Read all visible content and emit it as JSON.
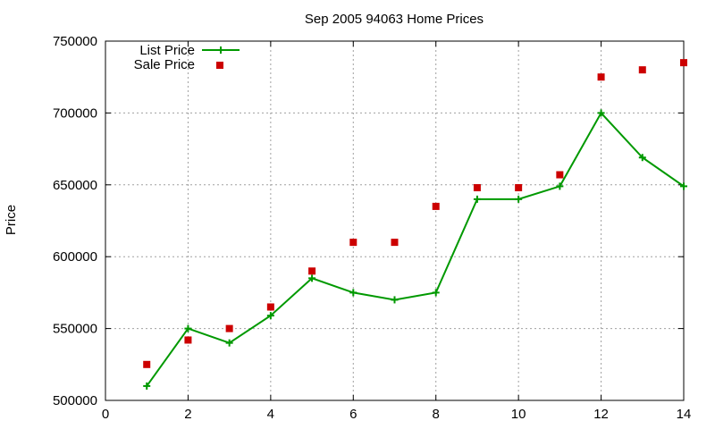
{
  "chart_data": {
    "type": "line",
    "title": "Sep 2005 94063 Home Prices",
    "xlabel": "",
    "ylabel": "Price",
    "xlim": [
      0,
      14
    ],
    "ylim": [
      500000,
      750000
    ],
    "x_ticks": [
      0,
      2,
      4,
      6,
      8,
      10,
      12,
      14
    ],
    "y_ticks": [
      500000,
      550000,
      600000,
      650000,
      700000,
      750000
    ],
    "grid": true,
    "legend_position": "top-left",
    "series": [
      {
        "name": "List Price",
        "style": "line-with-plus-markers",
        "color": "#009900",
        "x": [
          1,
          2,
          3,
          4,
          5,
          6,
          7,
          8,
          9,
          10,
          11,
          12,
          13,
          14
        ],
        "y": [
          510000,
          550000,
          540000,
          559000,
          585000,
          575000,
          570000,
          575000,
          640000,
          640000,
          649000,
          700000,
          669000,
          649000
        ]
      },
      {
        "name": "Sale Price",
        "style": "square-markers",
        "color": "#cc0000",
        "x": [
          1,
          2,
          3,
          4,
          5,
          6,
          7,
          8,
          9,
          10,
          11,
          12,
          13,
          14
        ],
        "y": [
          525000,
          542000,
          550000,
          565000,
          590000,
          610000,
          610000,
          635000,
          648000,
          648000,
          657000,
          725000,
          730000,
          735000
        ]
      }
    ]
  }
}
